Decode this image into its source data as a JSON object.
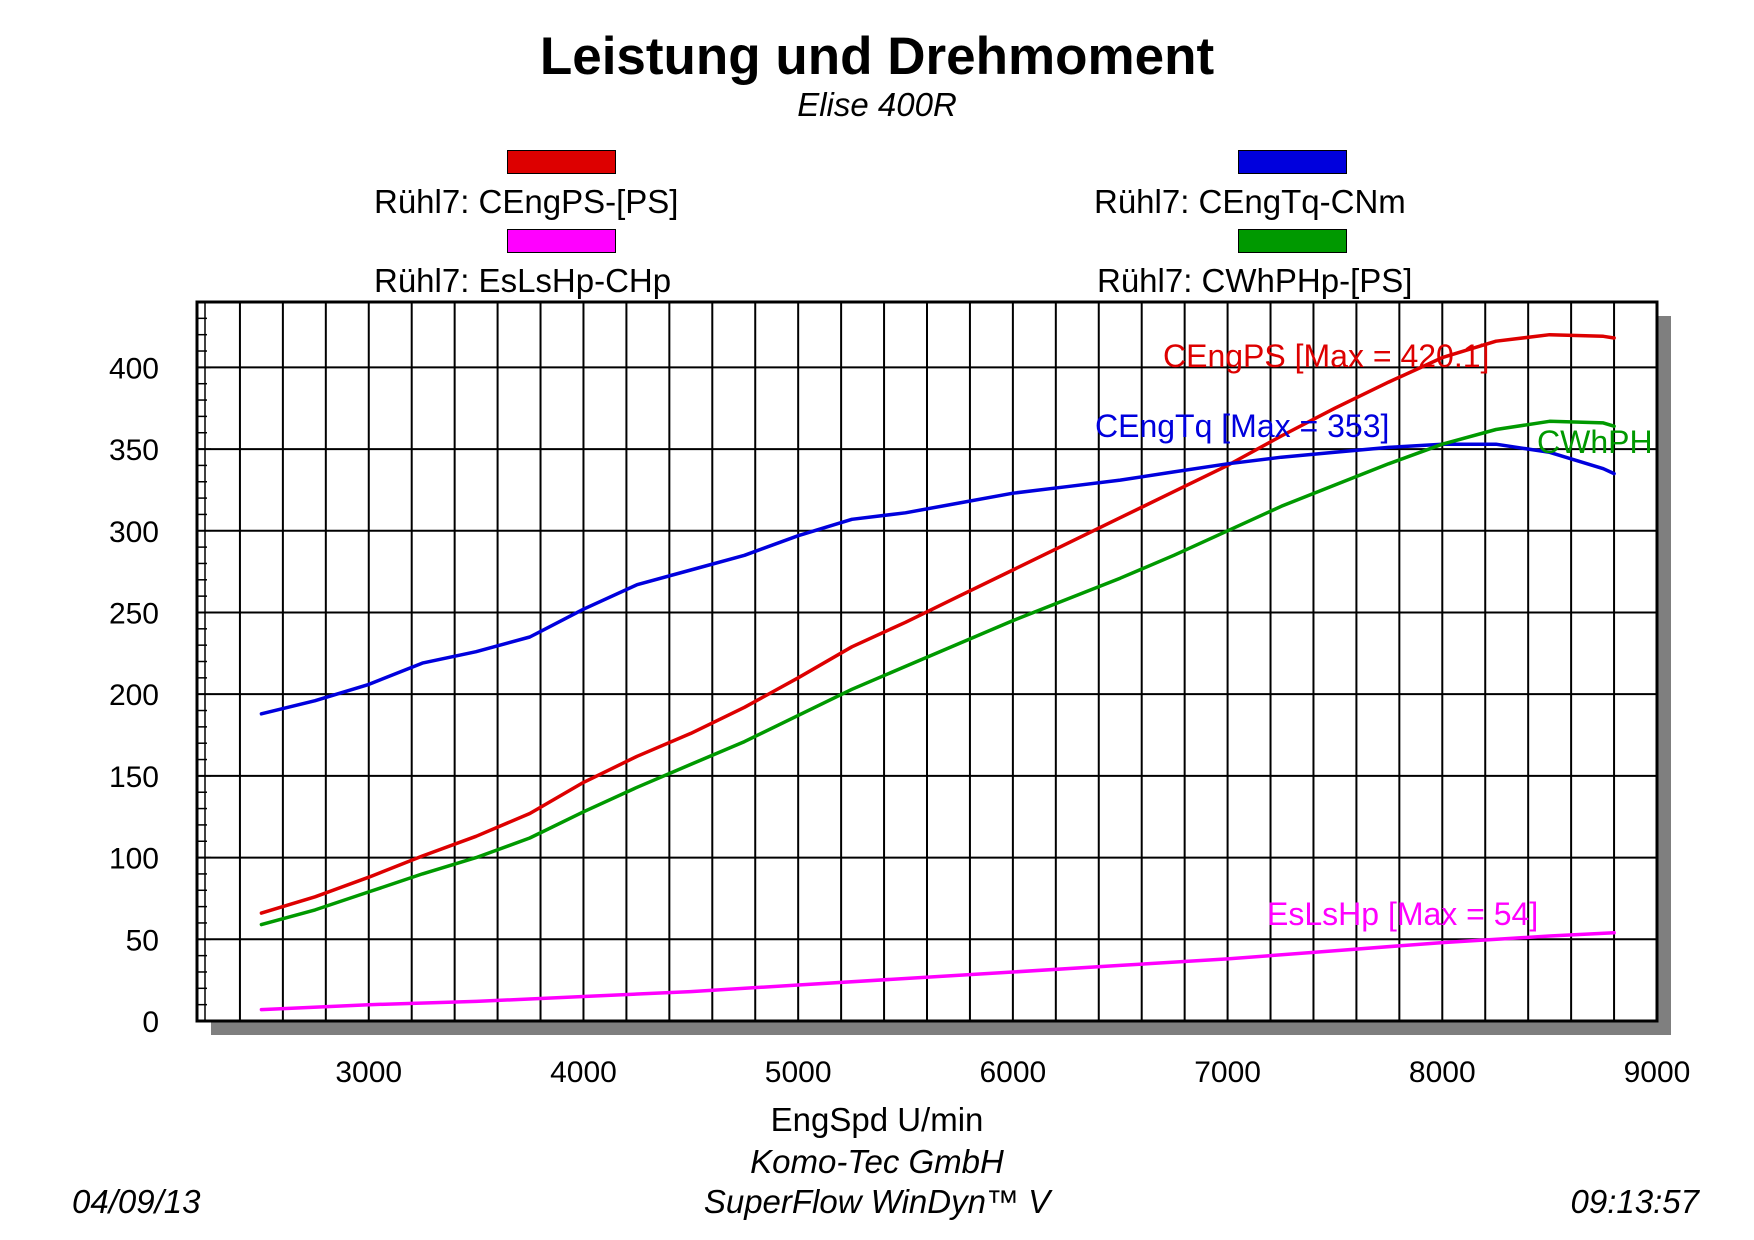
{
  "chart_data": {
    "type": "line",
    "title": "Leistung und Drehmoment",
    "subtitle": "Elise 400R",
    "xlabel": "EngSpd U/min",
    "ylabel": "",
    "xlim": [
      2200,
      9000
    ],
    "ylim": [
      0,
      440
    ],
    "x_ticks": [
      3000,
      4000,
      5000,
      6000,
      7000,
      8000,
      9000
    ],
    "y_ticks": [
      0,
      50,
      100,
      150,
      200,
      250,
      300,
      350,
      400
    ],
    "x_tick_labels": [
      "3000",
      "4000",
      "5000",
      "6000",
      "7000",
      "8000",
      "9000"
    ],
    "y_tick_labels": [
      "0",
      "50",
      "100",
      "150",
      "200",
      "250",
      "300",
      "350",
      "400"
    ],
    "grid": true,
    "legend": [
      {
        "label": "Rühl7: CEngPS-[PS]",
        "color": "#dd0000"
      },
      {
        "label": "Rühl7: CEngTq-CNm",
        "color": "#0000dd"
      },
      {
        "label": "Rühl7: EsLsHp-CHp",
        "color": "#ff00ff"
      },
      {
        "label": "Rühl7: CWhPHp-[PS]",
        "color": "#009900"
      }
    ],
    "series": [
      {
        "key": "ps",
        "color": "#dd0000",
        "annotation": "CEngPS [Max = 420.1]",
        "x": [
          2500,
          2750,
          3000,
          3250,
          3500,
          3750,
          4000,
          4250,
          4500,
          4750,
          5000,
          5250,
          5500,
          5750,
          6000,
          6250,
          6500,
          6750,
          7000,
          7250,
          7500,
          7750,
          8000,
          8250,
          8500,
          8750,
          8800
        ],
        "y": [
          66,
          76,
          88,
          101,
          113,
          127,
          146,
          162,
          176,
          192,
          210,
          229,
          244,
          260,
          276,
          292,
          308,
          324,
          340,
          358,
          375,
          391,
          406,
          416,
          420,
          419,
          418
        ]
      },
      {
        "key": "tq",
        "color": "#0000dd",
        "annotation": "CEngTq [Max = 353]",
        "x": [
          2500,
          2750,
          3000,
          3250,
          3500,
          3750,
          4000,
          4250,
          4500,
          4750,
          5000,
          5250,
          5500,
          5750,
          6000,
          6250,
          6500,
          6750,
          7000,
          7250,
          7500,
          7750,
          8000,
          8250,
          8500,
          8750,
          8800
        ],
        "y": [
          188,
          196,
          206,
          219,
          226,
          235,
          252,
          267,
          276,
          285,
          297,
          307,
          311,
          317,
          323,
          327,
          331,
          336,
          341,
          345,
          348,
          351,
          353,
          353,
          348,
          338,
          335
        ]
      },
      {
        "key": "ls",
        "color": "#ff00ff",
        "annotation": "EsLsHp [Max = 54]",
        "x": [
          2500,
          3000,
          3500,
          4000,
          4500,
          5000,
          5500,
          6000,
          6500,
          7000,
          7500,
          8000,
          8500,
          8800
        ],
        "y": [
          7,
          10,
          12,
          15,
          18,
          22,
          26,
          30,
          34,
          38,
          43,
          48,
          52,
          54
        ]
      },
      {
        "key": "wh",
        "color": "#009900",
        "annotation": "CWhPH",
        "x": [
          2500,
          2750,
          3000,
          3250,
          3500,
          3750,
          4000,
          4250,
          4500,
          4750,
          5000,
          5250,
          5500,
          5750,
          6000,
          6250,
          6500,
          6750,
          7000,
          7250,
          7500,
          7750,
          8000,
          8250,
          8500,
          8750,
          8800
        ],
        "y": [
          59,
          68,
          79,
          90,
          100,
          112,
          128,
          143,
          157,
          171,
          187,
          203,
          217,
          231,
          245,
          258,
          271,
          285,
          300,
          315,
          328,
          341,
          353,
          362,
          367,
          366,
          364
        ]
      }
    ]
  },
  "footer": {
    "company": "Komo-Tec GmbH",
    "software": "SuperFlow WinDyn™ V",
    "date": "04/09/13",
    "time": "09:13:57"
  }
}
